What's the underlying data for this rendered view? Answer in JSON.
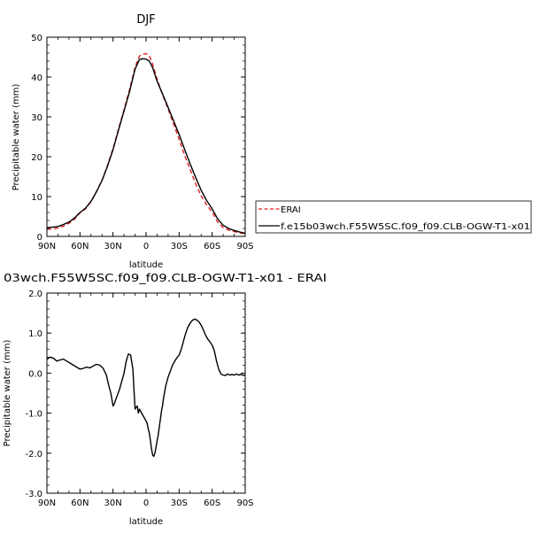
{
  "chart_data": [
    {
      "type": "line",
      "title": "DJF",
      "xlabel": "latitude",
      "ylabel": "Precipitable water (mm)",
      "xlim": [
        90,
        -90
      ],
      "ylim": [
        0,
        50
      ],
      "x_ticks": [
        90,
        60,
        30,
        0,
        -30,
        -60,
        -90
      ],
      "x_tick_labels": [
        "90N",
        "60N",
        "30N",
        "0",
        "30S",
        "60S",
        "90S"
      ],
      "y_ticks": [
        0,
        10,
        20,
        30,
        40,
        50
      ],
      "y_tick_labels": [
        "0",
        "10",
        "20",
        "30",
        "40",
        "50"
      ],
      "legend_placement": "right",
      "series": [
        {
          "name": "ERAI",
          "color": "#dd2222",
          "dash": "dashed",
          "x": [
            90,
            85,
            80,
            75,
            70,
            65,
            60,
            55,
            50,
            45,
            40,
            35,
            30,
            25,
            20,
            15,
            10,
            6,
            3,
            0,
            -3,
            -6,
            -10,
            -15,
            -20,
            -25,
            -30,
            -35,
            -40,
            -45,
            -50,
            -55,
            -60,
            -65,
            -70,
            -75,
            -80,
            -85,
            -90
          ],
          "values": [
            1.8,
            1.9,
            2.1,
            2.6,
            3.3,
            4.3,
            5.9,
            6.9,
            8.7,
            11.3,
            14.1,
            17.8,
            22.0,
            27.0,
            31.8,
            36.8,
            42.5,
            45.3,
            45.7,
            45.9,
            45.3,
            43.2,
            39.5,
            35.5,
            32.0,
            28.2,
            24.4,
            20.3,
            16.8,
            13.2,
            10.2,
            7.9,
            6.1,
            3.6,
            2.2,
            1.6,
            1.2,
            0.9,
            0.6
          ]
        },
        {
          "name": "f.e15b03wch.F55W5SC.f09_f09.CLB-OGW-T1-x01",
          "color": "#000000",
          "dash": "solid",
          "x": [
            90,
            85,
            80,
            75,
            70,
            65,
            60,
            55,
            50,
            45,
            40,
            35,
            30,
            25,
            20,
            15,
            10,
            6,
            3,
            0,
            -3,
            -6,
            -10,
            -15,
            -20,
            -25,
            -30,
            -35,
            -40,
            -45,
            -50,
            -55,
            -60,
            -65,
            -70,
            -75,
            -80,
            -85,
            -90
          ],
          "values": [
            2.2,
            2.3,
            2.5,
            3.0,
            3.6,
            4.6,
            6.0,
            7.1,
            8.8,
            11.2,
            14.0,
            17.6,
            21.8,
            26.7,
            31.5,
            36.3,
            42.0,
            44.4,
            44.6,
            44.5,
            44.0,
            42.3,
            39.0,
            35.7,
            32.4,
            29.0,
            25.6,
            21.8,
            18.2,
            14.8,
            11.6,
            9.0,
            6.9,
            4.4,
            2.8,
            2.0,
            1.5,
            1.1,
            0.8
          ]
        }
      ]
    },
    {
      "type": "line",
      "title": "03wch.F55W5SC.f09_f09.CLB-OGW-T1-x01 - ERAI",
      "xlabel": "latitude",
      "ylabel": "Precipitable water (mm)",
      "xlim": [
        90,
        -90
      ],
      "ylim": [
        -3.0,
        2.0
      ],
      "x_ticks": [
        90,
        60,
        30,
        0,
        -30,
        -60,
        -90
      ],
      "x_tick_labels": [
        "90N",
        "60N",
        "30N",
        "0",
        "30S",
        "60S",
        "90S"
      ],
      "y_ticks": [
        -3.0,
        -2.0,
        -1.0,
        0.0,
        1.0,
        2.0
      ],
      "y_tick_labels": [
        "-3.0",
        "-2.0",
        "-1.0",
        "0.0",
        "1.0",
        "2.0"
      ],
      "series": [
        {
          "color": "#000000",
          "dash": "solid",
          "x": [
            90,
            87,
            84,
            81,
            78,
            75,
            72,
            69,
            66,
            63,
            60,
            57,
            54,
            51,
            48,
            45,
            42,
            39,
            36,
            34,
            32,
            30,
            29,
            28,
            26,
            24,
            22,
            20,
            18,
            16,
            14,
            12,
            11,
            10,
            9,
            8,
            7,
            6,
            5,
            4,
            3,
            2,
            1,
            0,
            -1,
            -2,
            -3,
            -4,
            -5,
            -6,
            -7,
            -8,
            -9,
            -10,
            -11,
            -12,
            -13,
            -14,
            -15,
            -16,
            -18,
            -20,
            -22,
            -24,
            -26,
            -28,
            -30,
            -32,
            -34,
            -36,
            -38,
            -40,
            -42,
            -44,
            -46,
            -48,
            -50,
            -52,
            -54,
            -56,
            -58,
            -60,
            -62,
            -64,
            -66,
            -68,
            -70,
            -72,
            -74,
            -76,
            -78,
            -80,
            -82,
            -84,
            -86,
            -88,
            -90
          ],
          "values": [
            0.35,
            0.4,
            0.37,
            0.3,
            0.33,
            0.35,
            0.3,
            0.25,
            0.2,
            0.15,
            0.1,
            0.12,
            0.15,
            0.13,
            0.18,
            0.22,
            0.2,
            0.12,
            -0.05,
            -0.3,
            -0.5,
            -0.82,
            -0.78,
            -0.7,
            -0.55,
            -0.4,
            -0.2,
            0.0,
            0.3,
            0.48,
            0.45,
            0.1,
            -0.4,
            -0.9,
            -0.85,
            -0.82,
            -1.0,
            -0.9,
            -0.95,
            -1.0,
            -1.05,
            -1.1,
            -1.15,
            -1.2,
            -1.25,
            -1.4,
            -1.5,
            -1.7,
            -1.9,
            -2.05,
            -2.08,
            -2.0,
            -1.85,
            -1.7,
            -1.55,
            -1.35,
            -1.15,
            -0.95,
            -0.8,
            -0.6,
            -0.3,
            -0.1,
            0.05,
            0.2,
            0.3,
            0.38,
            0.45,
            0.6,
            0.8,
            1.0,
            1.15,
            1.25,
            1.32,
            1.35,
            1.33,
            1.28,
            1.2,
            1.08,
            0.95,
            0.85,
            0.78,
            0.7,
            0.55,
            0.3,
            0.1,
            -0.02,
            -0.05,
            -0.06,
            -0.02,
            -0.05,
            -0.03,
            -0.05,
            -0.02,
            -0.05,
            -0.03,
            -0.05,
            -0.05
          ]
        }
      ]
    }
  ]
}
